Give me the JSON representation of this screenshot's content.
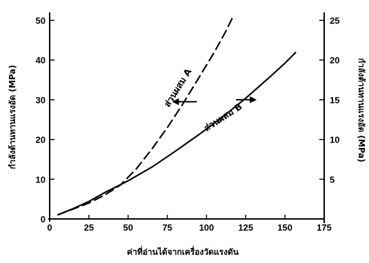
{
  "chart_data": {
    "type": "line",
    "xlabel": "ค่าที่อ่านได้จากเครื่องวัดแรงดัน",
    "ylabel_left": "กำลังต้านทานแรงอัด (MPa)",
    "ylabel_right": "กำลังต้านทานแรงอัด (MPa)",
    "xlim": [
      0,
      175
    ],
    "ylim_left": [
      0,
      52
    ],
    "ylim_right": [
      0,
      26
    ],
    "x_ticks": [
      "0",
      "25",
      "50",
      "75",
      "100",
      "125",
      "150",
      "175"
    ],
    "y_left_ticks": [
      "0",
      "10",
      "20",
      "30",
      "40",
      "50"
    ],
    "y_right_ticks": [
      "5",
      "10",
      "15",
      "20",
      "25"
    ],
    "series": [
      {
        "name": "ส่วนผสม A",
        "axis": "left",
        "style": "dashed",
        "x": [
          5,
          15,
          25,
          35,
          45,
          55,
          65,
          75,
          85,
          95,
          105,
          112,
          117
        ],
        "y": [
          1,
          2.5,
          4,
          6,
          8.5,
          12.5,
          17.5,
          23,
          29,
          35.5,
          42,
          47,
          51
        ]
      },
      {
        "name": "ส่วนผสม B",
        "axis": "right",
        "style": "solid",
        "x": [
          5,
          15,
          25,
          35,
          50,
          65,
          80,
          95,
          110,
          125,
          140,
          150,
          157
        ],
        "y": [
          0.5,
          1.3,
          2.2,
          3.3,
          4.8,
          6.5,
          8.5,
          10.6,
          12.8,
          15.2,
          17.8,
          19.6,
          21
        ]
      }
    ]
  }
}
